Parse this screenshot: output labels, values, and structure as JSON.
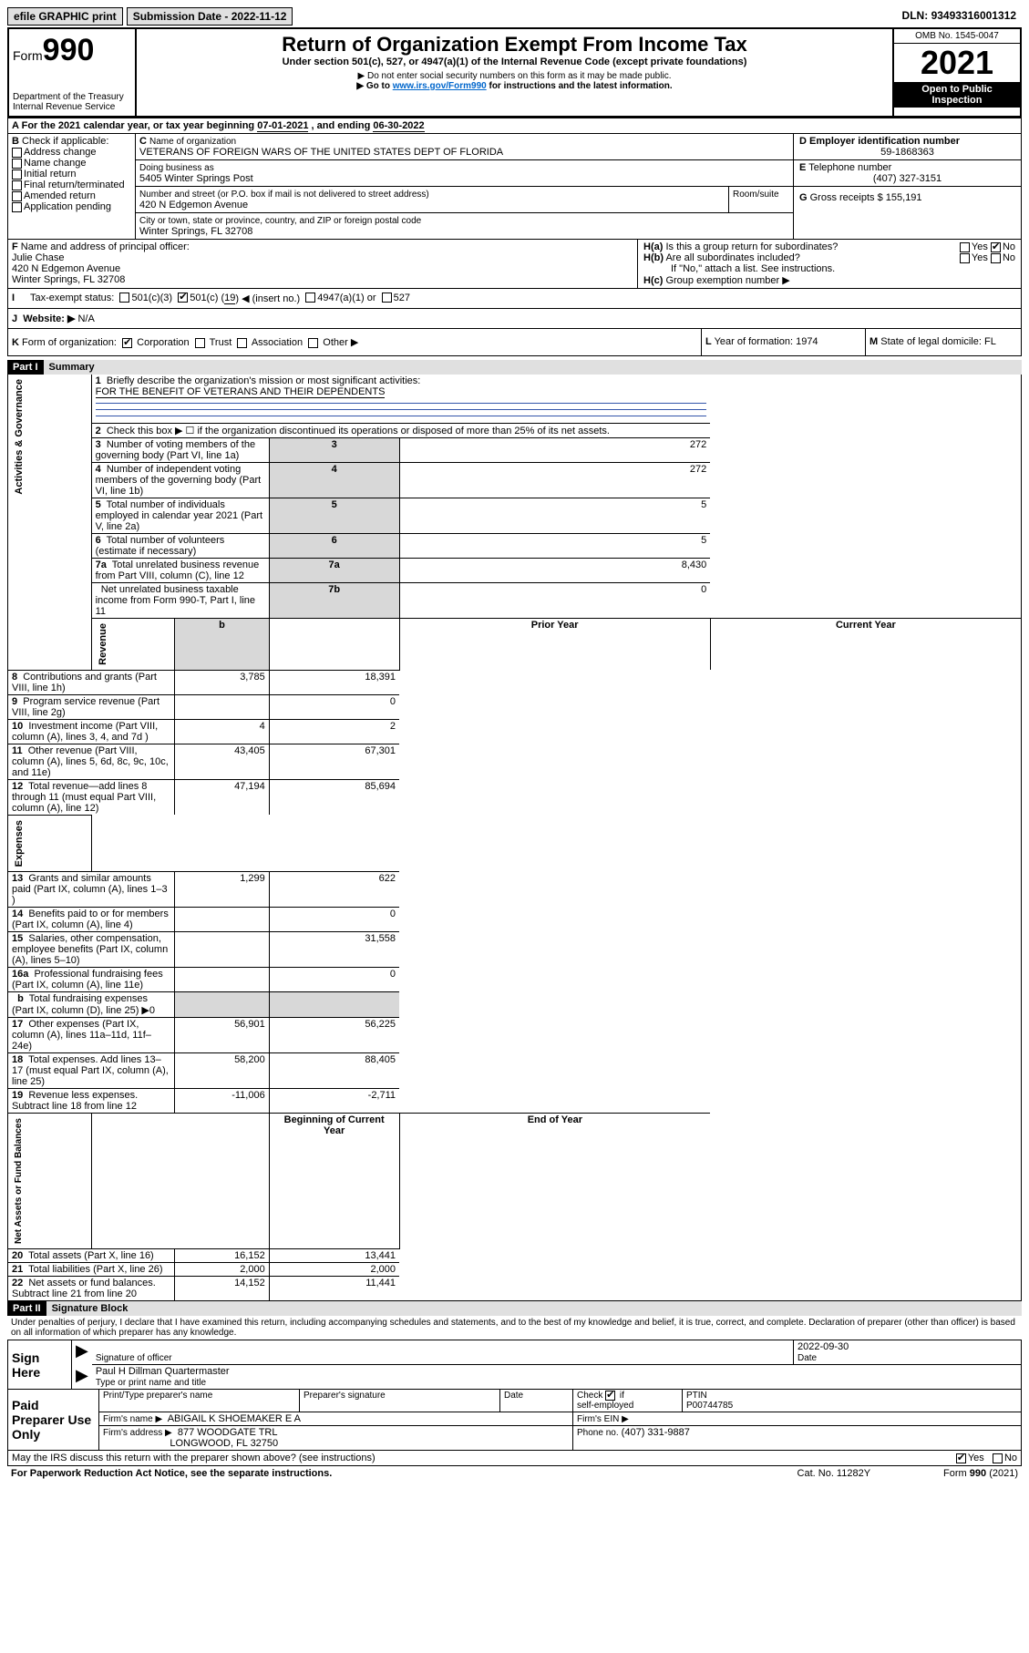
{
  "topbar": {
    "efile": "efile GRAPHIC print",
    "sub_label": "Submission Date",
    "sub_date": "2022-11-12",
    "dln_label": "DLN:",
    "dln": "93493316001312"
  },
  "header": {
    "form_label": "Form",
    "form_num": "990",
    "dept": "Department of the Treasury Internal Revenue Service",
    "title": "Return of Organization Exempt From Income Tax",
    "subtitle": "Under section 501(c), 527, or 4947(a)(1) of the Internal Revenue Code (except private foundations)",
    "note1": "▶ Do not enter social security numbers on this form as it may be made public.",
    "note2_pre": "▶ Go to ",
    "note2_link": "www.irs.gov/Form990",
    "note2_post": " for instructions and the latest information.",
    "omb": "OMB No. 1545-0047",
    "year": "2021",
    "open": "Open to Public Inspection"
  },
  "A": {
    "text": "For the 2021 calendar year, or tax year beginning ",
    "begin": "07-01-2021",
    "mid": " , and ending ",
    "end": "06-30-2022"
  },
  "B": {
    "label": "Check if applicable:",
    "items": [
      "Address change",
      "Name change",
      "Initial return",
      "Final return/terminated",
      "Amended return",
      "Application pending"
    ]
  },
  "C": {
    "name_label": "Name of organization",
    "name": "VETERANS OF FOREIGN WARS OF THE UNITED STATES DEPT OF FLORIDA",
    "dba_label": "Doing business as",
    "dba": "5405 Winter Springs Post",
    "street_label": "Number and street (or P.O. box if mail is not delivered to street address)",
    "room_label": "Room/suite",
    "street": "420 N Edgemon Avenue",
    "city_label": "City or town, state or province, country, and ZIP or foreign postal code",
    "city": "Winter Springs, FL  32708"
  },
  "D": {
    "label": "Employer identification number",
    "val": "59-1868363"
  },
  "E": {
    "label": "Telephone number",
    "val": "(407) 327-3151"
  },
  "G": {
    "label": "Gross receipts $",
    "val": "155,191"
  },
  "F": {
    "label": "Name and address of principal officer:",
    "name": "Julie Chase",
    "addr1": "420 N Edgemon Avenue",
    "addr2": "Winter Springs, FL  32708"
  },
  "H": {
    "a": "Is this a group return for subordinates?",
    "b": "Are all subordinates included?",
    "b_note": "If \"No,\" attach a list. See instructions.",
    "c": "Group exemption number ▶",
    "yes": "Yes",
    "no": "No"
  },
  "I": {
    "label": "Tax-exempt status:",
    "o1": "501(c)(3)",
    "o2": "501(c) (",
    "o2v": "19",
    "o2s": ") ◀ (insert no.)",
    "o3": "4947(a)(1) or",
    "o4": "527"
  },
  "J": {
    "label": "Website: ▶",
    "val": "N/A"
  },
  "K": {
    "label": "Form of organization:",
    "o1": "Corporation",
    "o2": "Trust",
    "o3": "Association",
    "o4": "Other ▶"
  },
  "L": {
    "label": "Year of formation:",
    "val": "1974"
  },
  "M": {
    "label": "State of legal domicile:",
    "val": "FL"
  },
  "partI": {
    "hdr": "Part I",
    "title": "Summary"
  },
  "p1": {
    "l1": "Briefly describe the organization's mission or most significant activities:",
    "l1v": "FOR THE BENEFIT OF VETERANS AND THEIR DEPENDENTS",
    "l2": "Check this box ▶ ☐  if the organization discontinued its operations or disposed of more than 25% of its net assets.",
    "sections": {
      "gov": "Activities & Governance",
      "rev": "Revenue",
      "exp": "Expenses",
      "net": "Net Assets or Fund Balances"
    },
    "rows": [
      {
        "n": "3",
        "t": "Number of voting members of the governing body (Part VI, line 1a)",
        "k": "3",
        "v": "272"
      },
      {
        "n": "4",
        "t": "Number of independent voting members of the governing body (Part VI, line 1b)",
        "k": "4",
        "v": "272"
      },
      {
        "n": "5",
        "t": "Total number of individuals employed in calendar year 2021 (Part V, line 2a)",
        "k": "5",
        "v": "5"
      },
      {
        "n": "6",
        "t": "Total number of volunteers (estimate if necessary)",
        "k": "6",
        "v": "5"
      },
      {
        "n": "7a",
        "t": "Total unrelated business revenue from Part VIII, column (C), line 12",
        "k": "7a",
        "v": "8,430"
      },
      {
        "n": "",
        "t": "Net unrelated business taxable income from Form 990-T, Part I, line 11",
        "k": "7b",
        "v": "0"
      }
    ],
    "col_prior": "Prior Year",
    "col_curr": "Current Year",
    "rev_rows": [
      {
        "n": "8",
        "t": "Contributions and grants (Part VIII, line 1h)",
        "p": "3,785",
        "c": "18,391"
      },
      {
        "n": "9",
        "t": "Program service revenue (Part VIII, line 2g)",
        "p": "",
        "c": "0"
      },
      {
        "n": "10",
        "t": "Investment income (Part VIII, column (A), lines 3, 4, and 7d )",
        "p": "4",
        "c": "2"
      },
      {
        "n": "11",
        "t": "Other revenue (Part VIII, column (A), lines 5, 6d, 8c, 9c, 10c, and 11e)",
        "p": "43,405",
        "c": "67,301"
      },
      {
        "n": "12",
        "t": "Total revenue—add lines 8 through 11 (must equal Part VIII, column (A), line 12)",
        "p": "47,194",
        "c": "85,694"
      }
    ],
    "exp_rows": [
      {
        "n": "13",
        "t": "Grants and similar amounts paid (Part IX, column (A), lines 1–3 )",
        "p": "1,299",
        "c": "622"
      },
      {
        "n": "14",
        "t": "Benefits paid to or for members (Part IX, column (A), line 4)",
        "p": "",
        "c": "0"
      },
      {
        "n": "15",
        "t": "Salaries, other compensation, employee benefits (Part IX, column (A), lines 5–10)",
        "p": "",
        "c": "31,558"
      },
      {
        "n": "16a",
        "t": "Professional fundraising fees (Part IX, column (A), line 11e)",
        "p": "",
        "c": "0"
      },
      {
        "n": "b",
        "t": "Total fundraising expenses (Part IX, column (D), line 25) ▶0",
        "p": null,
        "c": null
      },
      {
        "n": "17",
        "t": "Other expenses (Part IX, column (A), lines 11a–11d, 11f–24e)",
        "p": "56,901",
        "c": "56,225"
      },
      {
        "n": "18",
        "t": "Total expenses. Add lines 13–17 (must equal Part IX, column (A), line 25)",
        "p": "58,200",
        "c": "88,405"
      },
      {
        "n": "19",
        "t": "Revenue less expenses. Subtract line 18 from line 12",
        "p": "-11,006",
        "c": "-2,711"
      }
    ],
    "col_boy": "Beginning of Current Year",
    "col_eoy": "End of Year",
    "net_rows": [
      {
        "n": "20",
        "t": "Total assets (Part X, line 16)",
        "p": "16,152",
        "c": "13,441"
      },
      {
        "n": "21",
        "t": "Total liabilities (Part X, line 26)",
        "p": "2,000",
        "c": "2,000"
      },
      {
        "n": "22",
        "t": "Net assets or fund balances. Subtract line 21 from line 20",
        "p": "14,152",
        "c": "11,441"
      }
    ]
  },
  "partII": {
    "hdr": "Part II",
    "title": "Signature Block"
  },
  "sig": {
    "decl": "Under penalties of perjury, I declare that I have examined this return, including accompanying schedules and statements, and to the best of my knowledge and belief, it is true, correct, and complete. Declaration of preparer (other than officer) is based on all information of which preparer has any knowledge.",
    "sign_here": "Sign Here",
    "sig_officer": "Signature of officer",
    "date": "Date",
    "sig_date": "2022-09-30",
    "officer_name": "Paul H Dillman Quartermaster",
    "officer_title": "Type or print name and title",
    "paid": "Paid Preparer Use Only",
    "prep_name_label": "Print/Type preparer's name",
    "prep_sig_label": "Preparer's signature",
    "date_label": "Date",
    "check_label": "Check ☑ if self-employed",
    "ptin_label": "PTIN",
    "ptin": "P00744785",
    "firm_name_label": "Firm's name    ▶",
    "firm_name": "ABIGAIL K SHOEMAKER E A",
    "firm_ein_label": "Firm's EIN ▶",
    "firm_addr_label": "Firm's address ▶",
    "firm_addr1": "877 WOODGATE TRL",
    "firm_addr2": "LONGWOOD, FL  32750",
    "phone_label": "Phone no.",
    "phone": "(407) 331-9887",
    "may_irs": "May the IRS discuss this return with the preparer shown above? (see instructions)",
    "yes": "Yes",
    "no": "No"
  },
  "footer": {
    "pra": "For Paperwork Reduction Act Notice, see the separate instructions.",
    "cat": "Cat. No. 11282Y",
    "form": "Form 990 (2021)"
  }
}
